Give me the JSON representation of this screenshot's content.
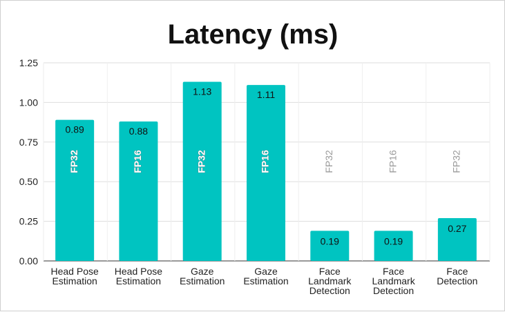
{
  "chart_data": {
    "type": "bar",
    "title": "Latency (ms)",
    "xlabel": "",
    "ylabel": "",
    "ylim": [
      0,
      1.25
    ],
    "yticks": [
      "0.00",
      "0.25",
      "0.50",
      "0.75",
      "1.00",
      "1.25"
    ],
    "grid": true,
    "legend": "none",
    "bar_color": "#00C4C1",
    "categories": [
      [
        "Head Pose",
        "Estimation"
      ],
      [
        "Head Pose",
        "Estimation"
      ],
      [
        "Gaze",
        "Estimation"
      ],
      [
        "Gaze",
        "Estimation"
      ],
      [
        "Face",
        "Landmark",
        "Detection"
      ],
      [
        "Face",
        "Landmark",
        "Detection"
      ],
      [
        "Face",
        "Detection"
      ]
    ],
    "values": [
      0.89,
      0.88,
      1.13,
      1.11,
      0.19,
      0.19,
      0.27
    ],
    "value_labels": [
      "0.89",
      "0.88",
      "1.13",
      "1.11",
      "0.19",
      "0.19",
      "0.27"
    ],
    "precision_labels": [
      "FP32",
      "FP16",
      "FP32",
      "FP16",
      "FP32",
      "FP16",
      "FP32"
    ]
  }
}
